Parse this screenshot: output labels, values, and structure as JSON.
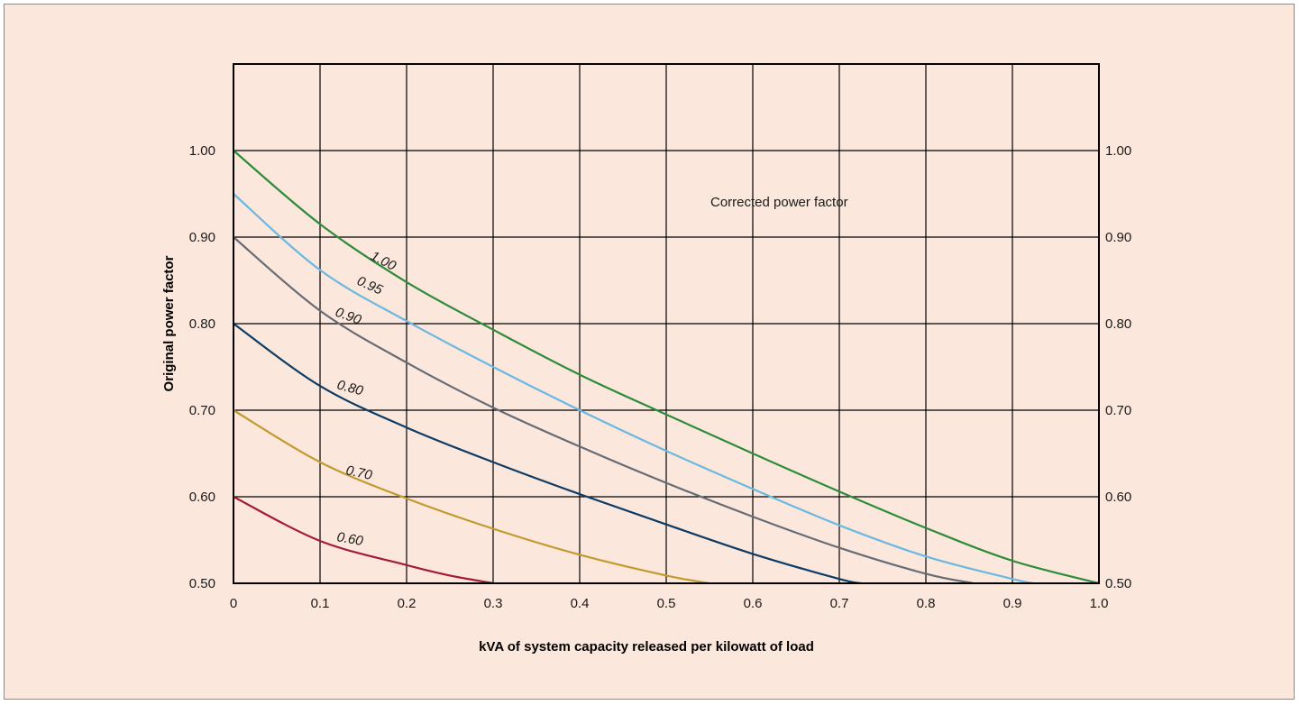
{
  "chart_data": {
    "type": "line",
    "title": "",
    "xlabel": "kVA of system capacity released per kilowatt of load",
    "ylabel": "Original power factor",
    "annotation": "Corrected power factor",
    "xlim": [
      0,
      1.0
    ],
    "ylim": [
      0.5,
      1.1
    ],
    "grid": true,
    "x_ticks": [
      "0",
      "0.1",
      "0.2",
      "0.3",
      "0.4",
      "0.5",
      "0.6",
      "0.7",
      "0.8",
      "0.9",
      "1.0"
    ],
    "y_ticks_left": [
      "0.50",
      "0.60",
      "0.70",
      "0.80",
      "0.90",
      "1.00"
    ],
    "y_ticks_right": [
      "0.50",
      "0.60",
      "0.70",
      "0.80",
      "0.90",
      "1.00"
    ],
    "series": [
      {
        "name": "1.00",
        "label": "1.00",
        "color": "#2e8b3a",
        "points": [
          [
            0,
            1.0
          ],
          [
            0.1,
            0.915
          ],
          [
            0.2,
            0.848
          ],
          [
            0.3,
            0.793
          ],
          [
            0.4,
            0.741
          ],
          [
            0.5,
            0.695
          ],
          [
            0.6,
            0.65
          ],
          [
            0.7,
            0.606
          ],
          [
            0.8,
            0.564
          ],
          [
            0.9,
            0.526
          ],
          [
            1.0,
            0.5
          ]
        ]
      },
      {
        "name": "0.95",
        "label": "0.95",
        "color": "#6bb8e0",
        "points": [
          [
            0,
            0.95
          ],
          [
            0.1,
            0.862
          ],
          [
            0.2,
            0.803
          ],
          [
            0.3,
            0.75
          ],
          [
            0.4,
            0.7
          ],
          [
            0.5,
            0.653
          ],
          [
            0.6,
            0.609
          ],
          [
            0.7,
            0.567
          ],
          [
            0.8,
            0.531
          ],
          [
            0.9,
            0.505
          ],
          [
            0.925,
            0.5
          ]
        ]
      },
      {
        "name": "0.90",
        "label": "0.90",
        "color": "#666c76",
        "points": [
          [
            0,
            0.9
          ],
          [
            0.1,
            0.815
          ],
          [
            0.2,
            0.755
          ],
          [
            0.3,
            0.703
          ],
          [
            0.4,
            0.658
          ],
          [
            0.5,
            0.616
          ],
          [
            0.6,
            0.577
          ],
          [
            0.7,
            0.541
          ],
          [
            0.8,
            0.511
          ],
          [
            0.855,
            0.5
          ]
        ]
      },
      {
        "name": "0.80",
        "label": "0.80",
        "color": "#0c3b66",
        "points": [
          [
            0,
            0.8
          ],
          [
            0.1,
            0.728
          ],
          [
            0.2,
            0.68
          ],
          [
            0.3,
            0.64
          ],
          [
            0.4,
            0.603
          ],
          [
            0.5,
            0.568
          ],
          [
            0.6,
            0.534
          ],
          [
            0.7,
            0.505
          ],
          [
            0.725,
            0.5
          ]
        ]
      },
      {
        "name": "0.70",
        "label": "0.70",
        "color": "#c29a2e",
        "points": [
          [
            0,
            0.7
          ],
          [
            0.1,
            0.64
          ],
          [
            0.2,
            0.598
          ],
          [
            0.3,
            0.563
          ],
          [
            0.4,
            0.533
          ],
          [
            0.5,
            0.509
          ],
          [
            0.55,
            0.5
          ]
        ]
      },
      {
        "name": "0.60",
        "label": "0.60",
        "color": "#a31b37",
        "points": [
          [
            0,
            0.6
          ],
          [
            0.1,
            0.549
          ],
          [
            0.2,
            0.521
          ],
          [
            0.25,
            0.509
          ],
          [
            0.3,
            0.5
          ]
        ]
      }
    ]
  }
}
